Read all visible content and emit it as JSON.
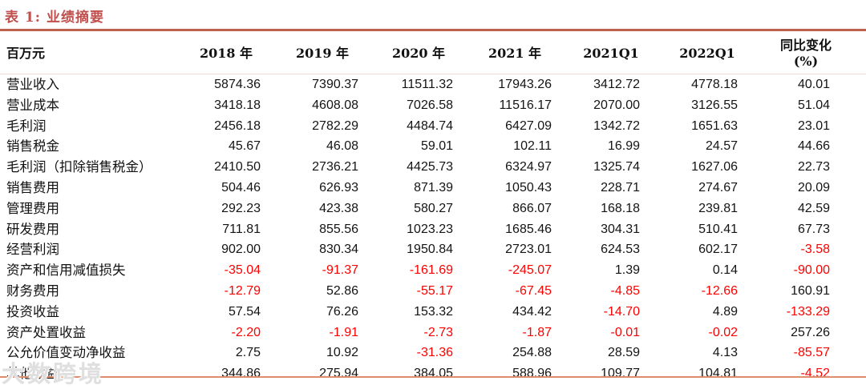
{
  "title": "表 1:  业绩摘要",
  "watermark": "大数跨境",
  "colors": {
    "accent_title": "#C0504D",
    "title_rule": "#C0604E",
    "header_rule": "#F2DCD1",
    "bottom_rule": "#E08D6E",
    "negative_value": "#FF0000",
    "text": "#141414"
  },
  "chart_data": {
    "type": "table",
    "title": "表 1: 业绩摘要",
    "unit": "百万元",
    "columns": [
      "百万元",
      "2018 年",
      "2019 年",
      "2020 年",
      "2021 年",
      "2021Q1",
      "2022Q1",
      "同比变化 (%)"
    ],
    "rows": [
      {
        "label": "营业收入",
        "values": [
          "5874.36",
          "7390.37",
          "11511.32",
          "17943.26",
          "3412.72",
          "4778.18",
          "40.01"
        ]
      },
      {
        "label": "营业成本",
        "values": [
          "3418.18",
          "4608.08",
          "7026.58",
          "11516.17",
          "2070.00",
          "3126.55",
          "51.04"
        ]
      },
      {
        "label": "毛利润",
        "values": [
          "2456.18",
          "2782.29",
          "4484.74",
          "6427.09",
          "1342.72",
          "1651.63",
          "23.01"
        ]
      },
      {
        "label": "销售税金",
        "values": [
          "45.67",
          "46.08",
          "59.01",
          "102.11",
          "16.99",
          "24.57",
          "44.66"
        ]
      },
      {
        "label": "毛利润（扣除销售税金）",
        "values": [
          "2410.50",
          "2736.21",
          "4425.73",
          "6324.97",
          "1325.74",
          "1627.06",
          "22.73"
        ]
      },
      {
        "label": "销售费用",
        "values": [
          "504.46",
          "626.93",
          "871.39",
          "1050.43",
          "228.71",
          "274.67",
          "20.09"
        ]
      },
      {
        "label": "管理费用",
        "values": [
          "292.23",
          "423.38",
          "580.27",
          "866.07",
          "168.18",
          "239.81",
          "42.59"
        ]
      },
      {
        "label": "研发费用",
        "values": [
          "711.81",
          "855.56",
          "1023.23",
          "1685.46",
          "304.31",
          "510.41",
          "67.73"
        ]
      },
      {
        "label": "经营利润",
        "values": [
          "902.00",
          "830.34",
          "1950.84",
          "2723.01",
          "624.53",
          "602.17",
          "-3.58"
        ]
      },
      {
        "label": "资产和信用减值损失",
        "values": [
          "-35.04",
          "-91.37",
          "-161.69",
          "-245.07",
          "1.39",
          "0.14",
          "-90.00"
        ]
      },
      {
        "label": "财务费用",
        "values": [
          "-12.79",
          "52.86",
          "-55.17",
          "-67.45",
          "-4.85",
          "-12.66",
          "160.91"
        ]
      },
      {
        "label": "投资收益",
        "values": [
          "57.54",
          "76.26",
          "153.32",
          "434.42",
          "-14.70",
          "4.89",
          "-133.29"
        ]
      },
      {
        "label": "资产处置收益",
        "values": [
          "-2.20",
          "-1.91",
          "-2.73",
          "-1.87",
          "-0.01",
          "-0.02",
          "257.26"
        ]
      },
      {
        "label": "公允价值变动净收益",
        "values": [
          "2.75",
          "10.92",
          "-31.36",
          "254.88",
          "28.59",
          "4.13",
          "-85.57"
        ]
      },
      {
        "label": "其他收益",
        "values": [
          "344.86",
          "275.94",
          "384.05",
          "588.96",
          "109.77",
          "104.81",
          "-4.52"
        ]
      }
    ]
  }
}
